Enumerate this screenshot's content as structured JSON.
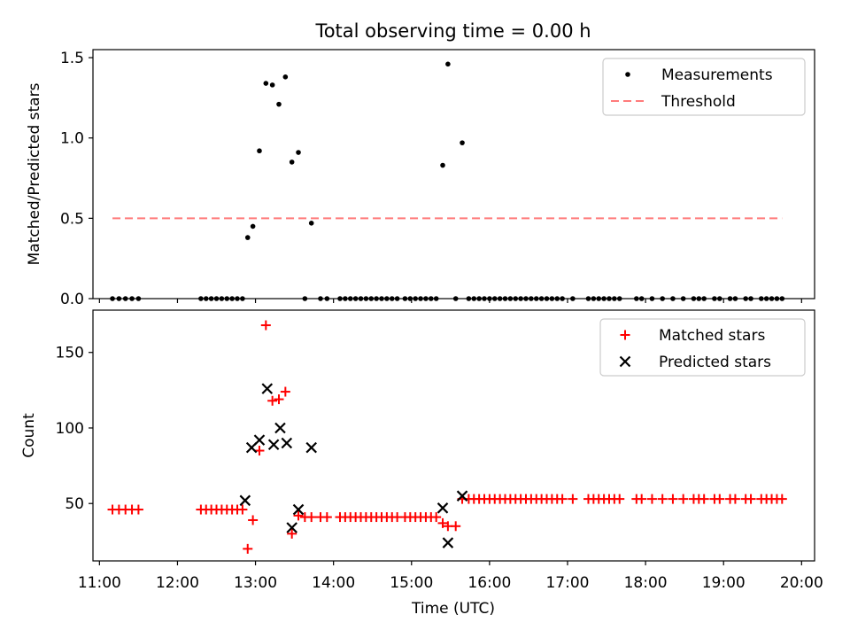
{
  "title": "Total observing time = 0.00 h",
  "x_ticks": [
    "11:00",
    "12:00",
    "13:00",
    "14:00",
    "15:00",
    "16:00",
    "17:00",
    "18:00",
    "19:00",
    "20:00"
  ],
  "xlabel": "Time (UTC)",
  "chart_data": [
    {
      "type": "scatter",
      "ylabel": "Matched/Predicted stars",
      "xlim": [
        "10:55",
        "20:10"
      ],
      "ylim": [
        0,
        1.55
      ],
      "y_ticks": [
        "0.0",
        "0.5",
        "1.0",
        "1.5"
      ],
      "legend_position": "top-right",
      "series": [
        {
          "name": "Measurements",
          "marker": "dot",
          "color": "#000000",
          "points": [
            [
              "11:10",
              0
            ],
            [
              "11:15",
              0
            ],
            [
              "11:20",
              0
            ],
            [
              "11:25",
              0
            ],
            [
              "11:30",
              0
            ],
            [
              "12:18",
              0
            ],
            [
              "12:22",
              0
            ],
            [
              "12:26",
              0
            ],
            [
              "12:30",
              0
            ],
            [
              "12:34",
              0
            ],
            [
              "12:38",
              0
            ],
            [
              "12:42",
              0
            ],
            [
              "12:46",
              0
            ],
            [
              "12:50",
              0
            ],
            [
              "12:54",
              0.38
            ],
            [
              "12:58",
              0.45
            ],
            [
              "13:03",
              0.92
            ],
            [
              "13:08",
              1.34
            ],
            [
              "13:13",
              1.33
            ],
            [
              "13:18",
              1.21
            ],
            [
              "13:23",
              1.38
            ],
            [
              "13:28",
              0.85
            ],
            [
              "13:33",
              0.91
            ],
            [
              "13:38",
              0
            ],
            [
              "13:43",
              0.47
            ],
            [
              "13:50",
              0
            ],
            [
              "13:55",
              0
            ],
            [
              "14:05",
              0
            ],
            [
              "14:09",
              0
            ],
            [
              "14:13",
              0
            ],
            [
              "14:17",
              0
            ],
            [
              "14:21",
              0
            ],
            [
              "14:25",
              0
            ],
            [
              "14:29",
              0
            ],
            [
              "14:33",
              0
            ],
            [
              "14:37",
              0
            ],
            [
              "14:41",
              0
            ],
            [
              "14:45",
              0
            ],
            [
              "14:49",
              0
            ],
            [
              "14:55",
              0
            ],
            [
              "14:59",
              0
            ],
            [
              "15:03",
              0
            ],
            [
              "15:07",
              0
            ],
            [
              "15:11",
              0
            ],
            [
              "15:15",
              0
            ],
            [
              "15:19",
              0
            ],
            [
              "15:24",
              0.83
            ],
            [
              "15:28",
              1.46
            ],
            [
              "15:34",
              0
            ],
            [
              "15:39",
              0.97
            ],
            [
              "15:44",
              0
            ],
            [
              "15:48",
              0
            ],
            [
              "15:52",
              0
            ],
            [
              "15:56",
              0
            ],
            [
              "16:00",
              0
            ],
            [
              "16:04",
              0
            ],
            [
              "16:08",
              0
            ],
            [
              "16:12",
              0
            ],
            [
              "16:16",
              0
            ],
            [
              "16:20",
              0
            ],
            [
              "16:24",
              0
            ],
            [
              "16:28",
              0
            ],
            [
              "16:32",
              0
            ],
            [
              "16:36",
              0
            ],
            [
              "16:40",
              0
            ],
            [
              "16:44",
              0
            ],
            [
              "16:48",
              0
            ],
            [
              "16:52",
              0
            ],
            [
              "16:56",
              0
            ],
            [
              "17:04",
              0
            ],
            [
              "17:16",
              0
            ],
            [
              "17:20",
              0
            ],
            [
              "17:24",
              0
            ],
            [
              "17:28",
              0
            ],
            [
              "17:32",
              0
            ],
            [
              "17:36",
              0
            ],
            [
              "17:40",
              0
            ],
            [
              "17:53",
              0
            ],
            [
              "17:57",
              0
            ],
            [
              "18:05",
              0
            ],
            [
              "18:13",
              0
            ],
            [
              "18:21",
              0
            ],
            [
              "18:29",
              0
            ],
            [
              "18:37",
              0
            ],
            [
              "18:41",
              0
            ],
            [
              "18:45",
              0
            ],
            [
              "18:53",
              0
            ],
            [
              "18:57",
              0
            ],
            [
              "19:05",
              0
            ],
            [
              "19:09",
              0
            ],
            [
              "19:17",
              0
            ],
            [
              "19:21",
              0
            ],
            [
              "19:29",
              0
            ],
            [
              "19:33",
              0
            ],
            [
              "19:37",
              0
            ],
            [
              "19:41",
              0
            ],
            [
              "19:45",
              0
            ]
          ]
        },
        {
          "name": "Threshold",
          "marker": "dashed-line",
          "color": "#ff7b7b",
          "points": [
            [
              "11:10",
              0.5
            ],
            [
              "19:45",
              0.5
            ]
          ]
        }
      ]
    },
    {
      "type": "scatter",
      "ylabel": "Count",
      "xlim": [
        "10:55",
        "20:10"
      ],
      "ylim": [
        12,
        178
      ],
      "y_ticks": [
        "50",
        "100",
        "150"
      ],
      "legend_position": "top-right",
      "series": [
        {
          "name": "Matched stars",
          "marker": "plus",
          "color": "#ff0000",
          "points": [
            [
              "11:10",
              46
            ],
            [
              "11:15",
              46
            ],
            [
              "11:20",
              46
            ],
            [
              "11:25",
              46
            ],
            [
              "11:30",
              46
            ],
            [
              "12:18",
              46
            ],
            [
              "12:22",
              46
            ],
            [
              "12:26",
              46
            ],
            [
              "12:30",
              46
            ],
            [
              "12:34",
              46
            ],
            [
              "12:38",
              46
            ],
            [
              "12:42",
              46
            ],
            [
              "12:46",
              46
            ],
            [
              "12:50",
              46
            ],
            [
              "12:54",
              20
            ],
            [
              "12:58",
              39
            ],
            [
              "13:03",
              85
            ],
            [
              "13:08",
              168
            ],
            [
              "13:13",
              118
            ],
            [
              "13:18",
              119
            ],
            [
              "13:23",
              124
            ],
            [
              "13:28",
              30
            ],
            [
              "13:33",
              42
            ],
            [
              "13:38",
              41
            ],
            [
              "13:43",
              41
            ],
            [
              "13:50",
              41
            ],
            [
              "13:55",
              41
            ],
            [
              "14:05",
              41
            ],
            [
              "14:09",
              41
            ],
            [
              "14:13",
              41
            ],
            [
              "14:17",
              41
            ],
            [
              "14:21",
              41
            ],
            [
              "14:25",
              41
            ],
            [
              "14:29",
              41
            ],
            [
              "14:33",
              41
            ],
            [
              "14:37",
              41
            ],
            [
              "14:41",
              41
            ],
            [
              "14:45",
              41
            ],
            [
              "14:49",
              41
            ],
            [
              "14:55",
              41
            ],
            [
              "14:59",
              41
            ],
            [
              "15:03",
              41
            ],
            [
              "15:07",
              41
            ],
            [
              "15:11",
              41
            ],
            [
              "15:15",
              41
            ],
            [
              "15:19",
              41
            ],
            [
              "15:24",
              37
            ],
            [
              "15:28",
              35
            ],
            [
              "15:34",
              35
            ],
            [
              "15:39",
              53
            ],
            [
              "15:44",
              53
            ],
            [
              "15:48",
              53
            ],
            [
              "15:52",
              53
            ],
            [
              "15:56",
              53
            ],
            [
              "16:00",
              53
            ],
            [
              "16:04",
              53
            ],
            [
              "16:08",
              53
            ],
            [
              "16:12",
              53
            ],
            [
              "16:16",
              53
            ],
            [
              "16:20",
              53
            ],
            [
              "16:24",
              53
            ],
            [
              "16:28",
              53
            ],
            [
              "16:32",
              53
            ],
            [
              "16:36",
              53
            ],
            [
              "16:40",
              53
            ],
            [
              "16:44",
              53
            ],
            [
              "16:48",
              53
            ],
            [
              "16:52",
              53
            ],
            [
              "16:56",
              53
            ],
            [
              "17:04",
              53
            ],
            [
              "17:16",
              53
            ],
            [
              "17:20",
              53
            ],
            [
              "17:24",
              53
            ],
            [
              "17:28",
              53
            ],
            [
              "17:32",
              53
            ],
            [
              "17:36",
              53
            ],
            [
              "17:40",
              53
            ],
            [
              "17:53",
              53
            ],
            [
              "17:57",
              53
            ],
            [
              "18:05",
              53
            ],
            [
              "18:13",
              53
            ],
            [
              "18:21",
              53
            ],
            [
              "18:29",
              53
            ],
            [
              "18:37",
              53
            ],
            [
              "18:41",
              53
            ],
            [
              "18:45",
              53
            ],
            [
              "18:53",
              53
            ],
            [
              "18:57",
              53
            ],
            [
              "19:05",
              53
            ],
            [
              "19:09",
              53
            ],
            [
              "19:17",
              53
            ],
            [
              "19:21",
              53
            ],
            [
              "19:29",
              53
            ],
            [
              "19:33",
              53
            ],
            [
              "19:37",
              53
            ],
            [
              "19:41",
              53
            ],
            [
              "19:45",
              53
            ]
          ]
        },
        {
          "name": "Predicted stars",
          "marker": "x",
          "color": "#000000",
          "points": [
            [
              "12:52",
              52
            ],
            [
              "12:57",
              87
            ],
            [
              "13:03",
              92
            ],
            [
              "13:09",
              126
            ],
            [
              "13:14",
              89
            ],
            [
              "13:19",
              100
            ],
            [
              "13:24",
              90
            ],
            [
              "13:28",
              34
            ],
            [
              "13:33",
              46
            ],
            [
              "13:43",
              87
            ],
            [
              "15:24",
              47
            ],
            [
              "15:28",
              24
            ],
            [
              "15:39",
              55
            ]
          ]
        }
      ]
    }
  ]
}
